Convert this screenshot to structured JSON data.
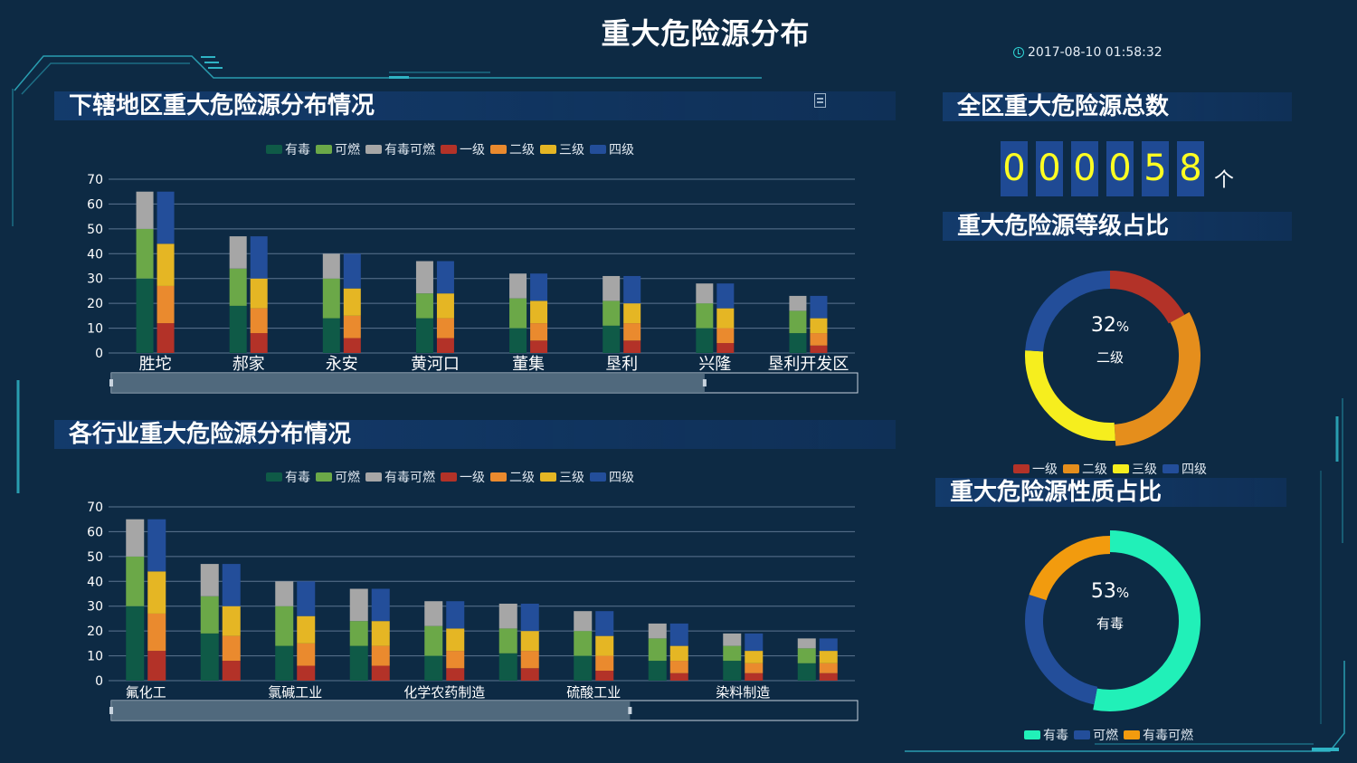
{
  "header": {
    "title": "重大危险源分布",
    "datetime": "2017-08-10 01:58:32"
  },
  "legend_items": [
    {
      "name": "有毒",
      "color": "#0f5a47"
    },
    {
      "name": "可燃",
      "color": "#6ba848"
    },
    {
      "name": "有毒可燃",
      "color": "#a6a6a6"
    },
    {
      "name": "一级",
      "color": "#b33228"
    },
    {
      "name": "二级",
      "color": "#ea8a2e"
    },
    {
      "name": "三级",
      "color": "#e5b624"
    },
    {
      "name": "四级",
      "color": "#234e9a"
    }
  ],
  "panels": {
    "region_title": "下辖地区重大危险源分布情况",
    "industry_title": "各行业重大危险源分布情况",
    "total_title": "全区重大危险源总数",
    "grade_title": "重大危险源等级占比",
    "nature_title": "重大危险源性质占比"
  },
  "total": {
    "digits": [
      "0",
      "0",
      "0",
      "0",
      "5",
      "8"
    ],
    "unit": "个"
  },
  "chart_data": [
    {
      "type": "bar",
      "title": "下辖地区重大危险源分布情况",
      "categories": [
        "胜坨",
        "郝家",
        "永安",
        "黄河口",
        "董集",
        "垦利",
        "兴隆",
        "垦利开发区"
      ],
      "ylim": [
        0,
        70
      ],
      "yticks": [
        0,
        10,
        20,
        30,
        40,
        50,
        60,
        70
      ],
      "stacks": [
        {
          "stack": "nature",
          "series": [
            {
              "name": "有毒",
              "values": [
                30,
                19,
                14,
                14,
                10,
                11,
                10,
                8
              ]
            },
            {
              "name": "可燃",
              "values": [
                20,
                15,
                16,
                10,
                12,
                10,
                10,
                9
              ]
            },
            {
              "name": "有毒可燃",
              "values": [
                15,
                13,
                10,
                13,
                10,
                10,
                8,
                6
              ]
            }
          ]
        },
        {
          "stack": "grade",
          "series": [
            {
              "name": "一级",
              "values": [
                12,
                8,
                6,
                6,
                5,
                5,
                4,
                3
              ]
            },
            {
              "name": "二级",
              "values": [
                15,
                10,
                9,
                8,
                7,
                7,
                6,
                5
              ]
            },
            {
              "name": "三级",
              "values": [
                17,
                12,
                11,
                10,
                9,
                8,
                8,
                6
              ]
            },
            {
              "name": "四级",
              "values": [
                21,
                17,
                14,
                13,
                11,
                11,
                10,
                9
              ]
            }
          ]
        }
      ],
      "grid": true,
      "legend": "top-center"
    },
    {
      "type": "bar",
      "title": "各行业重大危险源分布情况",
      "categories": [
        "氟化工",
        "",
        "氯碱工业",
        "",
        "化学农药制造",
        "",
        "硫酸工业",
        "",
        "染料制造",
        ""
      ],
      "ylim": [
        0,
        70
      ],
      "yticks": [
        0,
        10,
        20,
        30,
        40,
        50,
        60,
        70
      ],
      "stacks": [
        {
          "stack": "nature",
          "series": [
            {
              "name": "有毒",
              "values": [
                30,
                19,
                14,
                14,
                10,
                11,
                10,
                8,
                8,
                7
              ]
            },
            {
              "name": "可燃",
              "values": [
                20,
                15,
                16,
                10,
                12,
                10,
                10,
                9,
                6,
                6
              ]
            },
            {
              "name": "有毒可燃",
              "values": [
                15,
                13,
                10,
                13,
                10,
                10,
                8,
                6,
                5,
                4
              ]
            }
          ]
        },
        {
          "stack": "grade",
          "series": [
            {
              "name": "一级",
              "values": [
                12,
                8,
                6,
                6,
                5,
                5,
                4,
                3,
                3,
                3
              ]
            },
            {
              "name": "二级",
              "values": [
                15,
                10,
                9,
                8,
                7,
                7,
                6,
                5,
                4,
                4
              ]
            },
            {
              "name": "三级",
              "values": [
                17,
                12,
                11,
                10,
                9,
                8,
                8,
                6,
                5,
                5
              ]
            },
            {
              "name": "四级",
              "values": [
                21,
                17,
                14,
                13,
                11,
                11,
                10,
                9,
                7,
                5
              ]
            }
          ]
        }
      ],
      "grid": true,
      "legend": "top-center"
    },
    {
      "type": "pie",
      "title": "重大危险源等级占比",
      "slices": [
        {
          "name": "一级",
          "value": 17,
          "color": "#b33228"
        },
        {
          "name": "二级",
          "value": 32,
          "color": "#e58e1c"
        },
        {
          "name": "三级",
          "value": 27,
          "color": "#f6ee1e"
        },
        {
          "name": "四级",
          "value": 24,
          "color": "#234e9a"
        }
      ],
      "highlight": {
        "percent": "32",
        "label": "二级"
      }
    },
    {
      "type": "pie",
      "title": "重大危险源性质占比",
      "slices": [
        {
          "name": "有毒",
          "value": 53,
          "color": "#21f0b8"
        },
        {
          "name": "可燃",
          "value": 27,
          "color": "#234e9a"
        },
        {
          "name": "有毒可燃",
          "value": 20,
          "color": "#f29b0e"
        }
      ],
      "highlight": {
        "percent": "53",
        "label": "有毒"
      }
    }
  ]
}
